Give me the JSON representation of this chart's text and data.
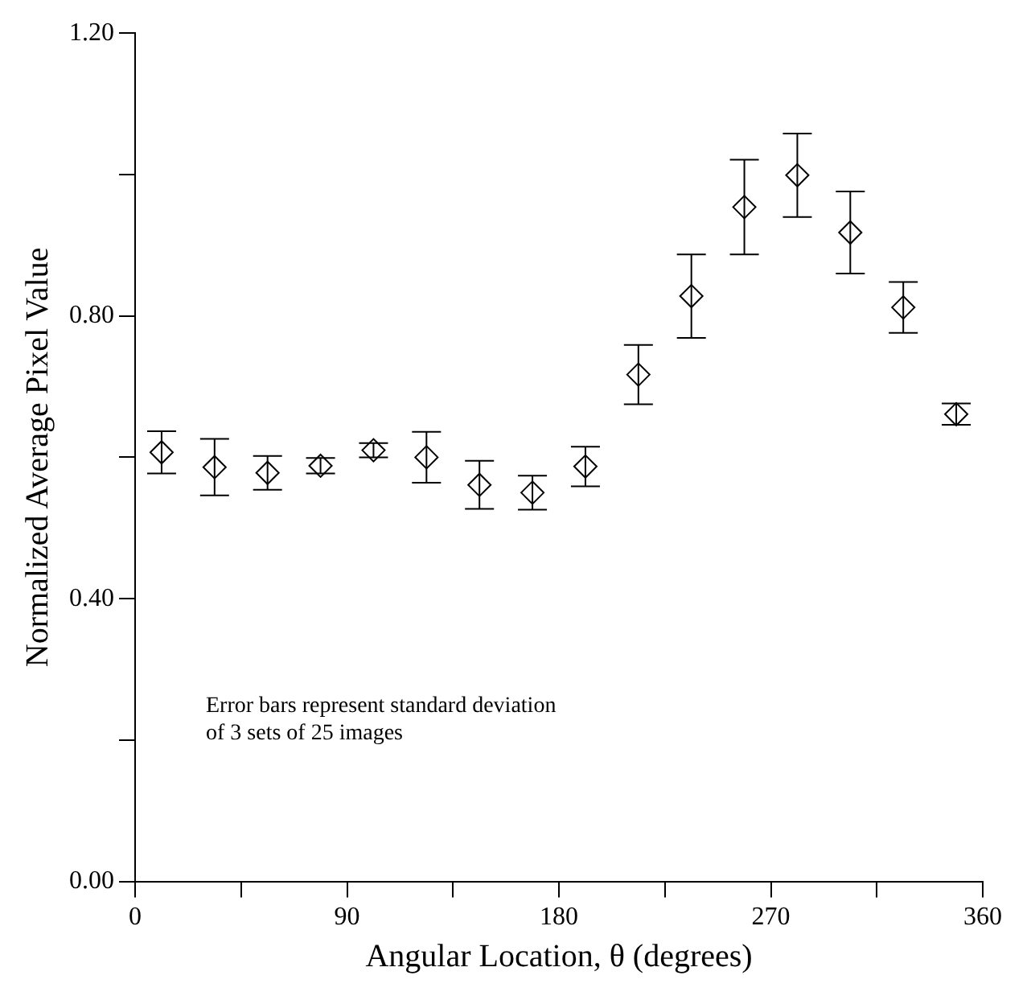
{
  "chart_data": {
    "type": "scatter",
    "xlabel": "Angular Location, θ (degrees)",
    "ylabel": "Normalized Average Pixel Value",
    "x": [
      11.25,
      33.75,
      56.25,
      78.75,
      101.25,
      123.75,
      146.25,
      168.75,
      191.25,
      213.75,
      236.25,
      258.75,
      281.25,
      303.75,
      326.25,
      348.75
    ],
    "series": [
      {
        "color": "#000000",
        "values": [
          0.607,
          0.586,
          0.578,
          0.588,
          0.61,
          0.6,
          0.561,
          0.55,
          0.587,
          0.717,
          0.828,
          0.954,
          0.999,
          0.918,
          0.812,
          0.661
        ],
        "errors": [
          0.03,
          0.04,
          0.024,
          0.011,
          0.01,
          0.036,
          0.034,
          0.024,
          0.028,
          0.042,
          0.059,
          0.067,
          0.059,
          0.058,
          0.036,
          0.015
        ]
      }
    ],
    "marker": "diamond",
    "xlim": [
      0,
      360
    ],
    "xticks": [
      0,
      {
        "value": 45,
        "label": null
      },
      90,
      {
        "value": 135,
        "label": null
      },
      180,
      {
        "value": 225,
        "label": null
      },
      270,
      {
        "value": 315,
        "label": null
      },
      360
    ],
    "ylim": [
      0,
      1.2
    ],
    "yticks": [
      {
        "value": 0,
        "label": "0.00"
      },
      {
        "value": 0.2,
        "label": null
      },
      {
        "value": 0.4,
        "label": "0.40"
      },
      {
        "value": 0.6,
        "label": null
      },
      {
        "value": 0.8,
        "label": "0.80"
      },
      {
        "value": 1.0,
        "label": null
      },
      {
        "value": 1.2,
        "label": "1.20"
      }
    ],
    "grid": false,
    "legend": false,
    "annotations": [
      "Error bars represent standard deviation\nof 3 sets of 25 images"
    ]
  }
}
